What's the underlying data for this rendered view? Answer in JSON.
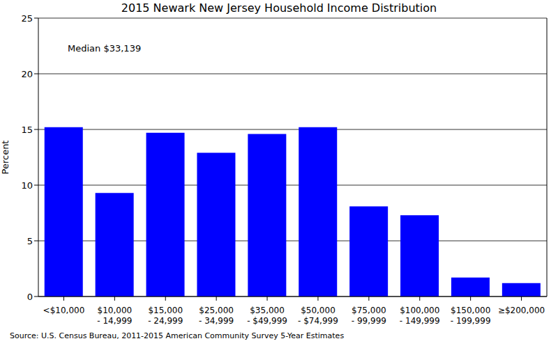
{
  "chart_data": {
    "type": "bar",
    "title": "2015 Newark New Jersey Household Income Distribution",
    "annotation": "Median $33,139",
    "source": "Source: U.S. Census Bureau, 2011-2015 American Community Survey 5-Year Estimates",
    "y_label": "Percent",
    "categories": [
      "<$10,000",
      "$10,000 - 14,999",
      "$15,000 - 24,999",
      "$25,000 - 34,999",
      "$35,000 - $49,999",
      "$50,000 - $74,999",
      "$75,000 - 99,999",
      "$100,000 - 149,999",
      "$150,000 - 199,999",
      "≥$200,000"
    ],
    "values": [
      15.2,
      9.3,
      14.7,
      12.9,
      14.6,
      15.2,
      8.1,
      7.3,
      1.7,
      1.2
    ],
    "color": "#0000ff",
    "ylim": [
      0,
      25
    ],
    "yticks": [
      0,
      5,
      10,
      15,
      20,
      25
    ],
    "grid": true
  }
}
